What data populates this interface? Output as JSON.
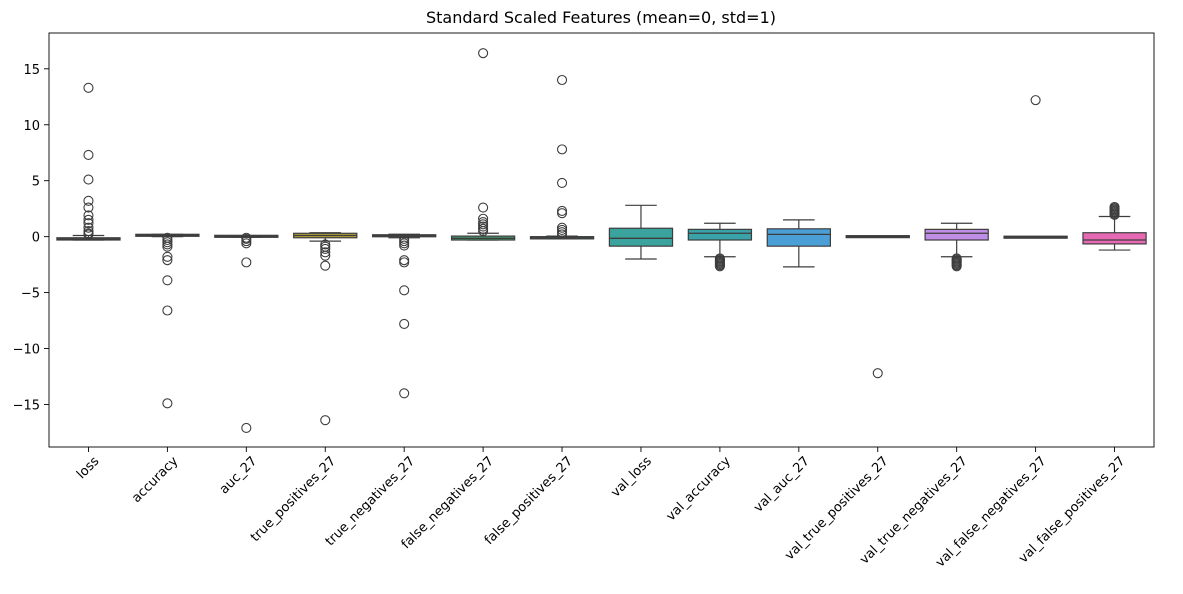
{
  "chart_data": {
    "type": "box",
    "title": "Standard Scaled Features (mean=0, std=1)",
    "xlabel": "",
    "ylabel": "",
    "ylim": [
      -18.8,
      18.2
    ],
    "yticks": [
      -15,
      -10,
      -5,
      0,
      5,
      10,
      15
    ],
    "ytick_labels": [
      "−15",
      "−10",
      "−5",
      "0",
      "5",
      "10",
      "15"
    ],
    "grid": false,
    "legend": "none",
    "categories": [
      "loss",
      "accuracy",
      "auc_27",
      "true_positives_27",
      "true_negatives_27",
      "false_negatives_27",
      "false_positives_27",
      "val_loss",
      "val_accuracy",
      "val_auc_27",
      "val_true_positives_27",
      "val_true_negatives_27",
      "val_false_negatives_27",
      "val_false_positives_27"
    ],
    "colors": [
      "#3274a1",
      "#e1812c",
      "#3a923a",
      "#c03d3e",
      "#9372b2",
      "#845b53",
      "#d684bd",
      "#7f7f7f",
      "#a9aa35",
      "#2ba9b5",
      "#3274a1",
      "#e1812c",
      "#3a923a",
      "#c03d3e"
    ],
    "boxes": [
      {
        "name": "loss",
        "color": "#6e96b8",
        "q1": -0.3,
        "median": -0.2,
        "q3": -0.1,
        "whisker_low": -0.3,
        "whisker_high": 0.1,
        "outliers": [
          13.3,
          7.3,
          5.1,
          3.2,
          2.6,
          1.9,
          1.5,
          1.2,
          0.8,
          0.5,
          0.3,
          0.2
        ]
      },
      {
        "name": "accuracy",
        "color": "#9a8f6e",
        "q1": 0.08,
        "median": 0.12,
        "q3": 0.16,
        "whisker_low": 0.0,
        "whisker_high": 0.2,
        "outliers": [
          -0.1,
          -0.3,
          -0.5,
          -0.7,
          -0.9,
          -1.8,
          -2.1,
          -3.9,
          -6.6,
          -14.9
        ]
      },
      {
        "name": "auc_27",
        "color": "#8f9b6a",
        "q1": 0.0,
        "median": 0.02,
        "q3": 0.06,
        "whisker_low": -0.05,
        "whisker_high": 0.08,
        "outliers": [
          -0.1,
          -0.2,
          -0.4,
          -0.6,
          -2.3,
          -17.1
        ]
      },
      {
        "name": "true_positives_27",
        "color": "#b0a23c",
        "q1": -0.1,
        "median": 0.1,
        "q3": 0.3,
        "whisker_low": -0.4,
        "whisker_high": 0.35,
        "outliers": [
          -0.7,
          -0.9,
          -1.1,
          -1.4,
          -1.7,
          -2.6,
          -16.4
        ]
      },
      {
        "name": "true_negatives_27",
        "color": "#7fa44e",
        "q1": 0.0,
        "median": 0.08,
        "q3": 0.16,
        "whisker_low": -0.1,
        "whisker_high": 0.22,
        "outliers": [
          -0.2,
          -0.4,
          -0.6,
          -0.8,
          -2.1,
          -2.3,
          -4.8,
          -7.8,
          -14.0
        ]
      },
      {
        "name": "false_negatives_27",
        "color": "#4aa373",
        "q1": -0.3,
        "median": -0.15,
        "q3": 0.05,
        "whisker_low": -0.3,
        "whisker_high": 0.3,
        "outliers": [
          0.5,
          0.7,
          0.9,
          1.1,
          1.3,
          1.6,
          2.6,
          16.4
        ]
      },
      {
        "name": "false_positives_27",
        "color": "#5a9e88",
        "q1": -0.2,
        "median": -0.1,
        "q3": 0.0,
        "whisker_low": -0.2,
        "whisker_high": 0.05,
        "outliers": [
          0.2,
          0.4,
          0.6,
          0.8,
          2.1,
          2.3,
          4.8,
          7.8,
          14.0
        ]
      },
      {
        "name": "val_loss",
        "color": "#3aa39d",
        "q1": -0.85,
        "median": -0.15,
        "q3": 0.75,
        "whisker_low": -2.0,
        "whisker_high": 2.8,
        "outliers": []
      },
      {
        "name": "val_accuracy",
        "color": "#3aa3aa",
        "q1": -0.3,
        "median": 0.3,
        "q3": 0.65,
        "whisker_low": -1.8,
        "whisker_high": 1.2,
        "outliers": [
          -1.95,
          -2.05,
          -2.15,
          -2.25,
          -2.35,
          -2.45,
          -2.55,
          -2.65
        ]
      },
      {
        "name": "val_auc_27",
        "color": "#4aa0d6",
        "q1": -0.85,
        "median": 0.2,
        "q3": 0.7,
        "whisker_low": -2.7,
        "whisker_high": 1.5,
        "outliers": []
      },
      {
        "name": "val_true_positives_27",
        "color": "#8f9ad0",
        "q1": 0.0,
        "median": 0.0,
        "q3": 0.0,
        "whisker_low": 0.0,
        "whisker_high": 0.0,
        "outliers": [
          -12.2
        ]
      },
      {
        "name": "val_true_negatives_27",
        "color": "#c08ee6",
        "q1": -0.3,
        "median": 0.3,
        "q3": 0.65,
        "whisker_low": -1.8,
        "whisker_high": 1.2,
        "outliers": [
          -1.95,
          -2.05,
          -2.15,
          -2.25,
          -2.35,
          -2.45,
          -2.55,
          -2.65
        ]
      },
      {
        "name": "val_false_negatives_27",
        "color": "#d98fd0",
        "q1": -0.05,
        "median": -0.05,
        "q3": -0.05,
        "whisker_low": -0.05,
        "whisker_high": -0.05,
        "outliers": [
          12.2
        ]
      },
      {
        "name": "val_false_positives_27",
        "color": "#e66ab3",
        "q1": -0.65,
        "median": -0.3,
        "q3": 0.35,
        "whisker_low": -1.2,
        "whisker_high": 1.8,
        "outliers": [
          1.95,
          2.05,
          2.15,
          2.25,
          2.35,
          2.45,
          2.55,
          2.65
        ]
      }
    ]
  }
}
